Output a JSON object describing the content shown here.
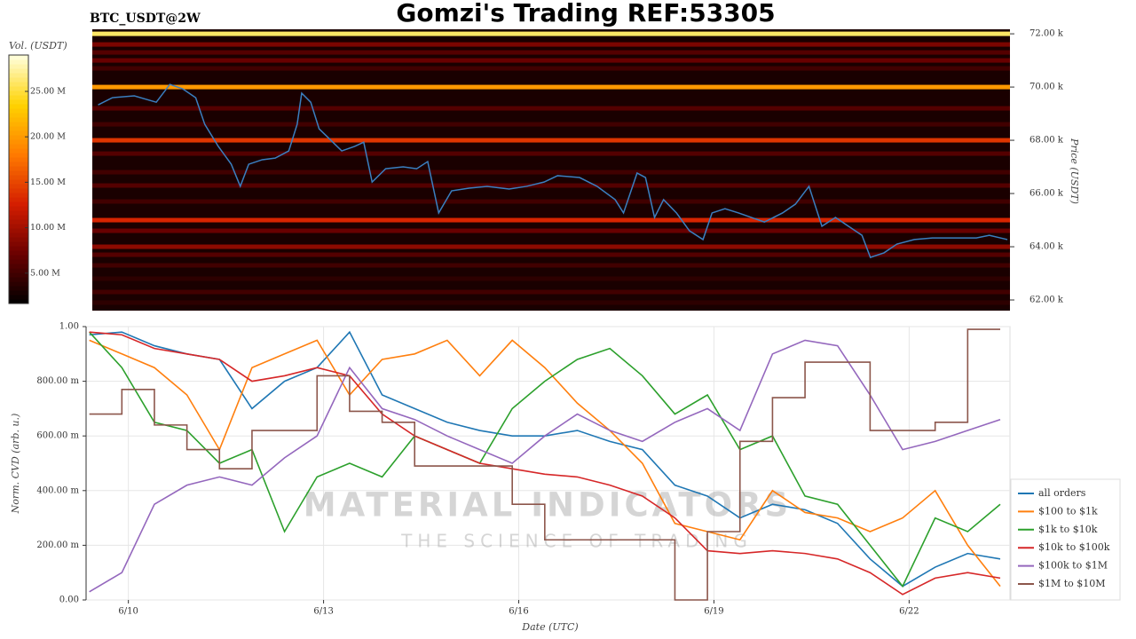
{
  "chart_data": [
    {
      "type": "heatmap",
      "title": "Gomzi's Trading REF:53305",
      "subtitle": "BTC_USDT@2W",
      "ylabel": "Price (USDT)",
      "xlim": [
        9.35,
        23.55
      ],
      "ylim": [
        61.6,
        72.17
      ],
      "yticks": [
        {
          "value": 62,
          "label": "62.00 k"
        },
        {
          "value": 64,
          "label": "64.00 k"
        },
        {
          "value": 66,
          "label": "66.00 k"
        },
        {
          "value": 68,
          "label": "68.00 k"
        },
        {
          "value": 70,
          "label": "70.00 k"
        },
        {
          "value": 72,
          "label": "72.00 k"
        }
      ],
      "x": [
        9.44,
        9.66,
        10.0,
        10.34,
        10.55,
        10.75,
        10.95,
        11.09,
        11.3,
        11.5,
        11.64,
        11.77,
        11.98,
        12.18,
        12.39,
        12.52,
        12.59,
        12.73,
        12.86,
        13.0,
        13.21,
        13.41,
        13.55,
        13.68,
        13.89,
        14.16,
        14.37,
        14.54,
        14.71,
        14.91,
        15.18,
        15.46,
        15.8,
        16.07,
        16.34,
        16.55,
        16.89,
        17.16,
        17.44,
        17.57,
        17.78,
        17.91,
        18.05,
        18.19,
        18.39,
        18.59,
        18.8,
        18.94,
        19.14,
        19.35,
        19.55,
        19.75,
        20.03,
        20.23,
        20.44,
        20.64,
        20.85,
        21.05,
        21.26,
        21.39,
        21.6,
        21.8,
        22.07,
        22.35,
        22.76,
        23.03,
        23.23,
        23.51
      ],
      "values": [
        69.33,
        69.6,
        69.67,
        69.43,
        70.1,
        69.93,
        69.6,
        68.6,
        67.77,
        67.1,
        66.27,
        67.1,
        67.27,
        67.33,
        67.6,
        68.6,
        69.77,
        69.43,
        68.43,
        68.1,
        67.6,
        67.77,
        67.93,
        66.43,
        66.93,
        67.0,
        66.93,
        67.2,
        65.27,
        66.1,
        66.2,
        66.27,
        66.17,
        66.27,
        66.43,
        66.67,
        66.6,
        66.27,
        65.77,
        65.27,
        66.77,
        66.6,
        65.1,
        65.77,
        65.27,
        64.6,
        64.27,
        65.27,
        65.43,
        65.27,
        65.1,
        64.93,
        65.27,
        65.6,
        66.27,
        64.77,
        65.1,
        64.77,
        64.43,
        63.6,
        63.77,
        64.1,
        64.27,
        64.33,
        64.33,
        64.33,
        64.43,
        64.27
      ],
      "color": "#3a7fc0",
      "levels": [
        72.0,
        71.6,
        71.3,
        71.0,
        70.7,
        70.0,
        69.2,
        68.6,
        68.0,
        67.5,
        66.8,
        66.3,
        65.7,
        65.0,
        64.6,
        64.0,
        63.7,
        63.3,
        62.8,
        62.3,
        61.9
      ],
      "level_volumes": [
        26,
        8,
        6,
        7,
        5,
        20,
        6,
        5,
        14,
        6,
        5,
        6,
        5,
        13,
        7,
        9,
        6,
        5,
        4,
        5,
        4
      ],
      "colormap": [
        "#000000",
        "#6a0000",
        "#d41d00",
        "#ff7a00",
        "#ffd200",
        "#ffffe0"
      ],
      "colorbar": {
        "label": "Vol. (USDT)",
        "lim": [
          1.66,
          29
        ],
        "ticks": [
          {
            "value": 5,
            "label": "5.00 M"
          },
          {
            "value": 10,
            "label": "10.00 M"
          },
          {
            "value": 15,
            "label": "15.00 M"
          },
          {
            "value": 20,
            "label": "20.00 M"
          },
          {
            "value": 25,
            "label": "25.00 M"
          }
        ]
      }
    },
    {
      "type": "line",
      "ylabel": "Norm. CVD (arb. u.)",
      "xlabel": "Date (UTC)",
      "grid": true,
      "xlim": [
        9.35,
        23.55
      ],
      "ylim": [
        0,
        1
      ],
      "xticks": [
        {
          "value": 10,
          "label": "6/10"
        },
        {
          "value": 13,
          "label": "6/13"
        },
        {
          "value": 16,
          "label": "6/16"
        },
        {
          "value": 19,
          "label": "6/19"
        },
        {
          "value": 22,
          "label": "6/22"
        }
      ],
      "yticks": [
        {
          "value": 0,
          "label": "0.00"
        },
        {
          "value": 0.2,
          "label": "200.00 m"
        },
        {
          "value": 0.4,
          "label": "400.00 m"
        },
        {
          "value": 0.6,
          "label": "600.00 m"
        },
        {
          "value": 0.8,
          "label": "800.00 m"
        },
        {
          "value": 1,
          "label": "1.00"
        }
      ],
      "annotations": [
        "MATERIAL INDICATORS",
        "THE SCIENCE OF TRADING"
      ],
      "x": [
        9.4,
        9.9,
        10.4,
        10.9,
        11.4,
        11.9,
        12.4,
        12.9,
        13.4,
        13.9,
        14.4,
        14.9,
        15.4,
        15.9,
        16.4,
        16.9,
        17.4,
        17.9,
        18.4,
        18.9,
        19.4,
        19.9,
        20.4,
        20.9,
        21.4,
        21.9,
        22.4,
        22.9,
        23.4
      ],
      "series": [
        {
          "name": "all orders",
          "color": "#1f77b4",
          "values": [
            0.97,
            0.98,
            0.93,
            0.9,
            0.88,
            0.7,
            0.8,
            0.85,
            0.98,
            0.75,
            0.7,
            0.65,
            0.62,
            0.6,
            0.6,
            0.62,
            0.58,
            0.55,
            0.42,
            0.38,
            0.3,
            0.35,
            0.33,
            0.28,
            0.15,
            0.05,
            0.12,
            0.17,
            0.15
          ]
        },
        {
          "name": "$100 to $1k",
          "color": "#ff7f0e",
          "values": [
            0.95,
            0.9,
            0.85,
            0.75,
            0.55,
            0.85,
            0.9,
            0.95,
            0.75,
            0.88,
            0.9,
            0.95,
            0.82,
            0.95,
            0.85,
            0.72,
            0.62,
            0.5,
            0.28,
            0.25,
            0.22,
            0.4,
            0.32,
            0.3,
            0.25,
            0.3,
            0.4,
            0.2,
            0.05
          ]
        },
        {
          "name": "$1k to $10k",
          "color": "#2ca02c",
          "values": [
            0.98,
            0.85,
            0.65,
            0.62,
            0.5,
            0.55,
            0.25,
            0.45,
            0.5,
            0.45,
            0.6,
            0.55,
            0.5,
            0.7,
            0.8,
            0.88,
            0.92,
            0.82,
            0.68,
            0.75,
            0.55,
            0.6,
            0.38,
            0.35,
            0.2,
            0.05,
            0.3,
            0.25,
            0.35
          ]
        },
        {
          "name": "$10k to $100k",
          "color": "#d62728",
          "values": [
            0.98,
            0.97,
            0.92,
            0.9,
            0.88,
            0.8,
            0.82,
            0.85,
            0.82,
            0.68,
            0.6,
            0.55,
            0.5,
            0.48,
            0.46,
            0.45,
            0.42,
            0.38,
            0.3,
            0.18,
            0.17,
            0.18,
            0.17,
            0.15,
            0.1,
            0.02,
            0.08,
            0.1,
            0.08
          ]
        },
        {
          "name": "$100k to $1M",
          "color": "#9467bd",
          "values": [
            0.03,
            0.1,
            0.35,
            0.42,
            0.45,
            0.42,
            0.52,
            0.6,
            0.85,
            0.7,
            0.66,
            0.6,
            0.55,
            0.5,
            0.6,
            0.68,
            0.62,
            0.58,
            0.65,
            0.7,
            0.62,
            0.9,
            0.95,
            0.93,
            0.75,
            0.55,
            0.58,
            0.62,
            0.66
          ]
        },
        {
          "name": "$1M to $10M",
          "color": "#8c564b",
          "step": true,
          "values": [
            0.68,
            0.77,
            0.64,
            0.55,
            0.48,
            0.62,
            0.62,
            0.82,
            0.69,
            0.65,
            0.49,
            0.49,
            0.49,
            0.35,
            0.22,
            0.22,
            0.22,
            0.22,
            0.0,
            0.25,
            0.58,
            0.74,
            0.87,
            0.87,
            0.62,
            0.62,
            0.65,
            0.99,
            0.99
          ]
        }
      ]
    }
  ]
}
